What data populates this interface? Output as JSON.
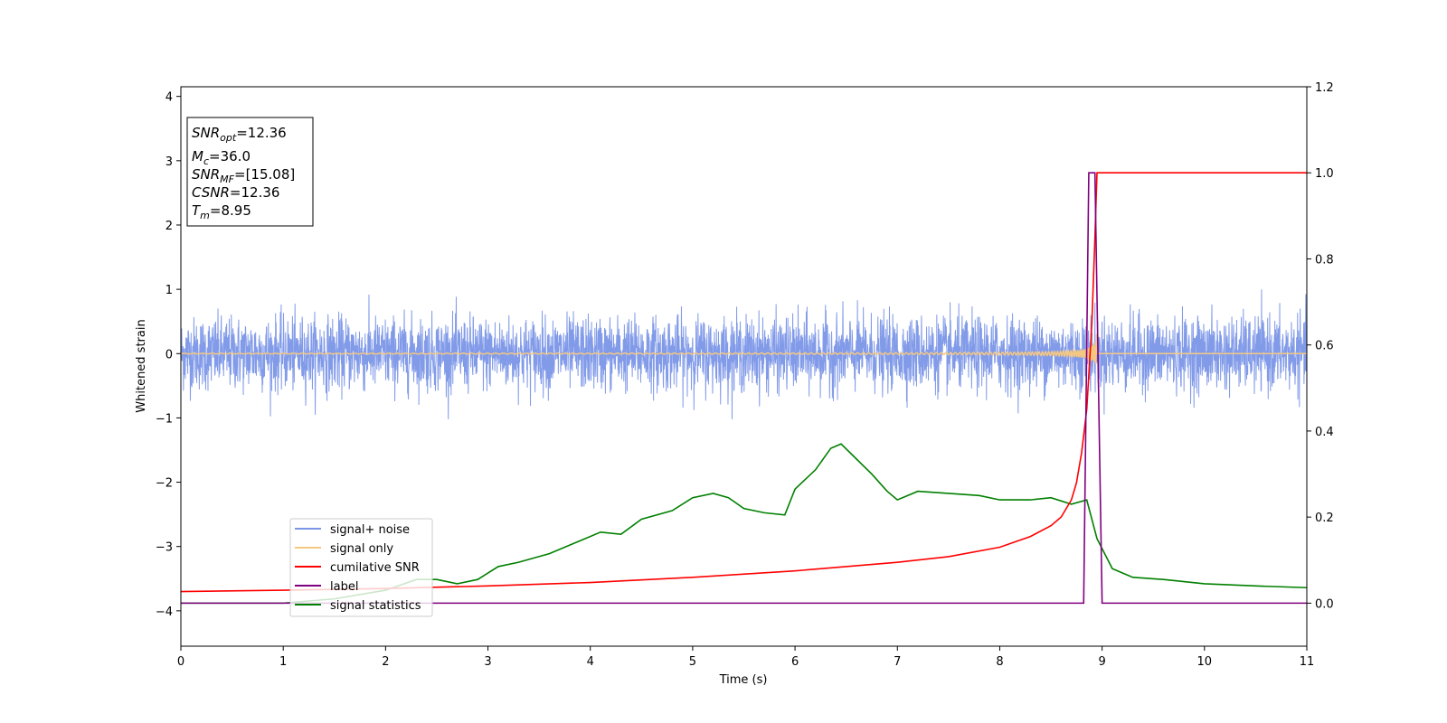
{
  "chart_data": {
    "type": "line",
    "xlabel": "Time (s)",
    "ylabel_left": "Whitened strain",
    "ylabel_right": "",
    "xlim": [
      0,
      11
    ],
    "ylim_left": [
      -4.55,
      4.15
    ],
    "ylim_right": [
      -0.1,
      1.2
    ],
    "x_ticks": [
      0,
      1,
      2,
      3,
      4,
      5,
      6,
      7,
      8,
      9,
      10,
      11
    ],
    "y_ticks_left": [
      -4,
      -3,
      -2,
      -1,
      0,
      1,
      2,
      3,
      4
    ],
    "y_ticks_right": [
      0.0,
      0.2,
      0.4,
      0.6,
      0.8,
      1.0,
      1.2
    ],
    "grid": false,
    "legend_position": "lower-left",
    "annotation": {
      "lines": [
        {
          "sym": "SNR",
          "sub": "opt",
          "value": "=12.36"
        },
        {
          "sym": "M",
          "sub": "c",
          "value": "=36.0"
        },
        {
          "sym": "SNR",
          "sub": "MF",
          "value": "=[15.08]"
        },
        {
          "sym": "CSNR",
          "sub": "",
          "value": "=12.36"
        },
        {
          "sym": "T",
          "sub": "m",
          "value": "=8.95"
        }
      ]
    },
    "series": [
      {
        "name": "signal+ noise",
        "axis": "left",
        "color": "#7b96e8",
        "description_values": "white noise, std ~0.28, peaks ~±1.0, x 0..11",
        "noise_std": 0.28
      },
      {
        "name": "signal only",
        "axis": "left",
        "color": "#f5c882",
        "chirp_end": 8.95,
        "chirp_peak_amplitude": 0.45
      },
      {
        "name": "cumilative SNR",
        "axis": "right",
        "color": "#ff0000",
        "points": [
          [
            0,
            0.027
          ],
          [
            1,
            0.03
          ],
          [
            2,
            0.034
          ],
          [
            3,
            0.04
          ],
          [
            4,
            0.048
          ],
          [
            5,
            0.06
          ],
          [
            6,
            0.075
          ],
          [
            7,
            0.095
          ],
          [
            7.5,
            0.108
          ],
          [
            8,
            0.13
          ],
          [
            8.3,
            0.155
          ],
          [
            8.5,
            0.18
          ],
          [
            8.6,
            0.2
          ],
          [
            8.7,
            0.24
          ],
          [
            8.75,
            0.28
          ],
          [
            8.8,
            0.35
          ],
          [
            8.85,
            0.45
          ],
          [
            8.9,
            0.65
          ],
          [
            8.93,
            0.85
          ],
          [
            8.95,
            1.0
          ],
          [
            11,
            1.0
          ]
        ]
      },
      {
        "name": "label",
        "axis": "right",
        "color": "#800080",
        "points": [
          [
            0,
            0.0
          ],
          [
            8.82,
            0.0
          ],
          [
            8.87,
            1.0
          ],
          [
            8.93,
            1.0
          ],
          [
            9.0,
            0.0
          ],
          [
            11,
            0.0
          ]
        ]
      },
      {
        "name": "signal statistics",
        "axis": "right",
        "color": "#008000",
        "points": [
          [
            0,
            0.0
          ],
          [
            1.0,
            0.0
          ],
          [
            1.5,
            0.01
          ],
          [
            2.0,
            0.03
          ],
          [
            2.3,
            0.055
          ],
          [
            2.5,
            0.055
          ],
          [
            2.7,
            0.045
          ],
          [
            2.9,
            0.055
          ],
          [
            3.1,
            0.085
          ],
          [
            3.3,
            0.095
          ],
          [
            3.6,
            0.115
          ],
          [
            3.9,
            0.145
          ],
          [
            4.1,
            0.165
          ],
          [
            4.3,
            0.16
          ],
          [
            4.5,
            0.195
          ],
          [
            4.8,
            0.215
          ],
          [
            5.0,
            0.245
          ],
          [
            5.2,
            0.255
          ],
          [
            5.35,
            0.245
          ],
          [
            5.5,
            0.22
          ],
          [
            5.7,
            0.21
          ],
          [
            5.9,
            0.205
          ],
          [
            6.0,
            0.265
          ],
          [
            6.2,
            0.31
          ],
          [
            6.35,
            0.36
          ],
          [
            6.45,
            0.37
          ],
          [
            6.6,
            0.335
          ],
          [
            6.75,
            0.3
          ],
          [
            6.9,
            0.26
          ],
          [
            7.0,
            0.24
          ],
          [
            7.2,
            0.26
          ],
          [
            7.5,
            0.255
          ],
          [
            7.8,
            0.25
          ],
          [
            8.0,
            0.24
          ],
          [
            8.3,
            0.24
          ],
          [
            8.5,
            0.245
          ],
          [
            8.7,
            0.23
          ],
          [
            8.85,
            0.24
          ],
          [
            8.95,
            0.15
          ],
          [
            9.1,
            0.08
          ],
          [
            9.3,
            0.06
          ],
          [
            9.6,
            0.055
          ],
          [
            10.0,
            0.045
          ],
          [
            10.5,
            0.04
          ],
          [
            11,
            0.036
          ]
        ]
      }
    ]
  }
}
